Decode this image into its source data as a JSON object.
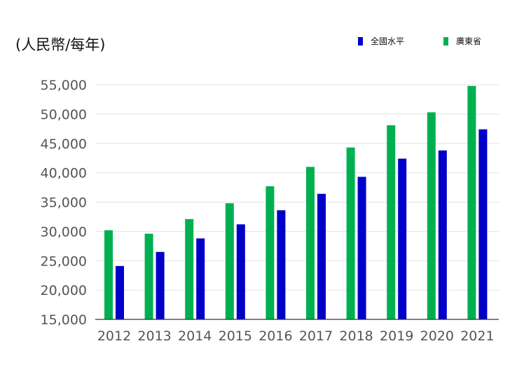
{
  "unit_label": "(人民幣/每年)",
  "colors": {
    "national": "#0000c8",
    "guangdong": "#00b050",
    "grid": "#e3e3e3",
    "axis": "#333333",
    "tick_text": "#555555"
  },
  "chart_data": {
    "type": "bar",
    "categories": [
      "2012",
      "2013",
      "2014",
      "2015",
      "2016",
      "2017",
      "2018",
      "2019",
      "2020",
      "2021"
    ],
    "series": [
      {
        "name": "廣東省",
        "color": "#00b050",
        "values": [
          30200,
          29600,
          32100,
          34800,
          37700,
          41000,
          44300,
          48100,
          50300,
          54800
        ]
      },
      {
        "name": "全國水平",
        "color": "#0000c8",
        "values": [
          24100,
          26500,
          28800,
          31200,
          33600,
          36400,
          39300,
          42400,
          43800,
          47400
        ]
      }
    ],
    "ylim": [
      15000,
      55000
    ],
    "yticks": [
      "15,000",
      "20,000",
      "25,000",
      "30,000",
      "35,000",
      "40,000",
      "45,000",
      "50,000",
      "55,000"
    ],
    "grid": true,
    "legend": [
      "全國水平",
      "廣東省"
    ],
    "legend_position": "top-right"
  }
}
